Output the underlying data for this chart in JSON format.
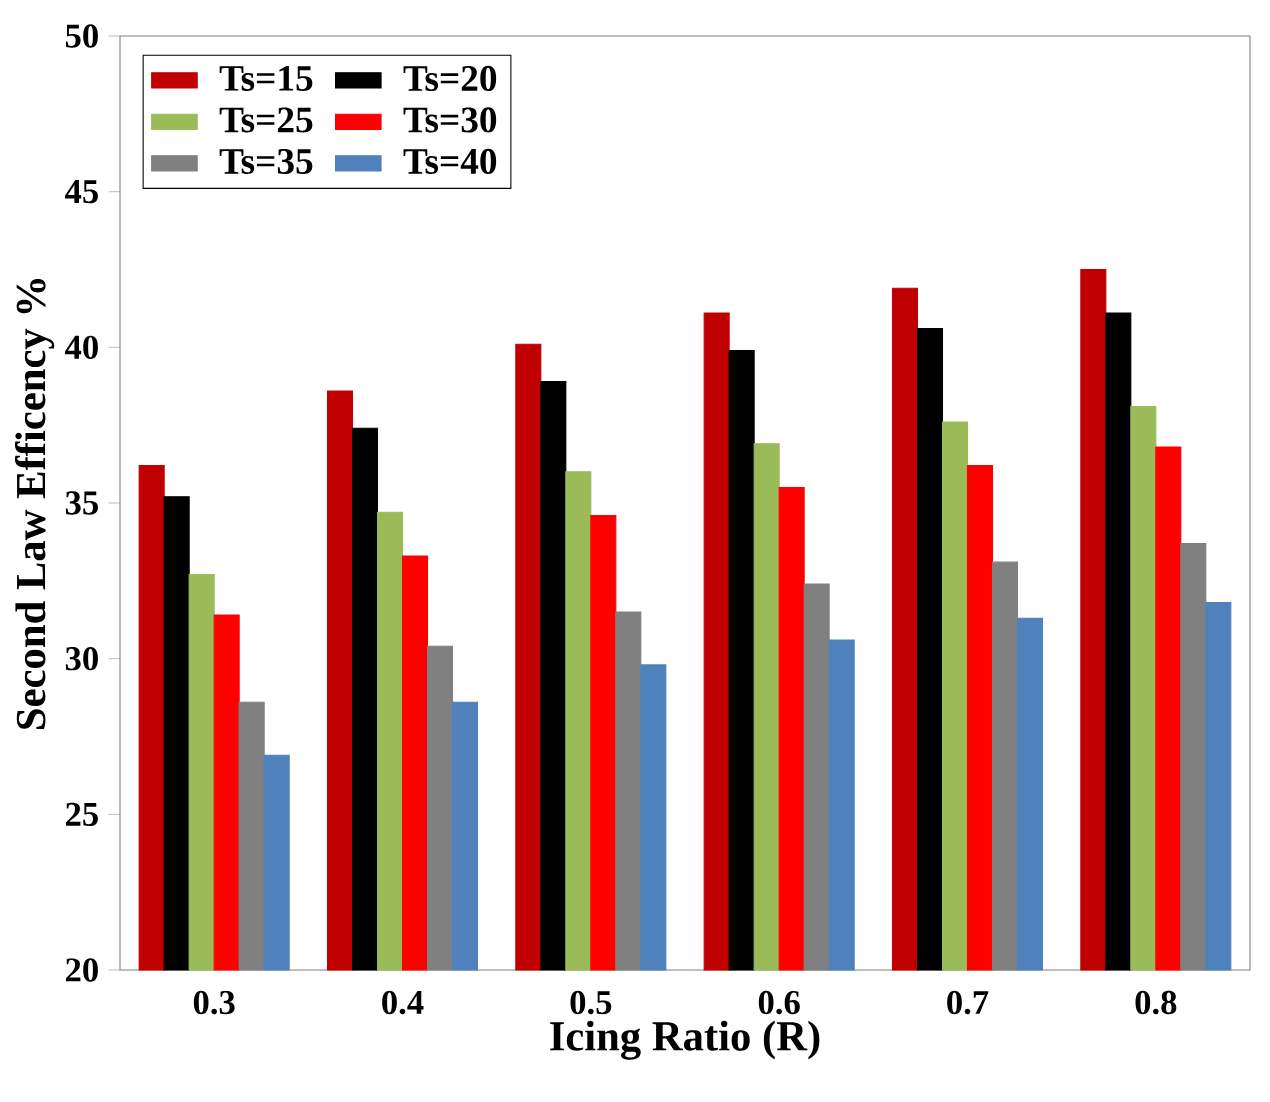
{
  "chart_data": {
    "type": "bar",
    "xlabel": "Icing Ratio (R)",
    "ylabel": "Second Law Efficency  %",
    "categories": [
      "0.3",
      "0.4",
      "0.5",
      "0.6",
      "0.7",
      "0.8"
    ],
    "series": [
      {
        "name": "Ts=15",
        "color": "#c00000",
        "values": [
          36.2,
          38.6,
          40.1,
          41.1,
          41.9,
          42.5
        ]
      },
      {
        "name": "Ts=20",
        "color": "#000000",
        "values": [
          35.2,
          37.4,
          38.9,
          39.9,
          40.6,
          41.1
        ]
      },
      {
        "name": "Ts=25",
        "color": "#9bbb59",
        "values": [
          32.7,
          34.7,
          36.0,
          36.9,
          37.6,
          38.1
        ]
      },
      {
        "name": "Ts=30",
        "color": "#ff0000",
        "values": [
          31.4,
          33.3,
          34.6,
          35.5,
          36.2,
          36.8
        ]
      },
      {
        "name": "Ts=35",
        "color": "#808080",
        "values": [
          28.6,
          30.4,
          31.5,
          32.4,
          33.1,
          33.7
        ]
      },
      {
        "name": "Ts=40",
        "color": "#4f81bd",
        "values": [
          26.9,
          28.6,
          29.8,
          30.6,
          31.3,
          31.8
        ]
      }
    ],
    "ylim": [
      20,
      50
    ],
    "yticks": [
      20,
      25,
      30,
      35,
      40,
      45,
      50
    ],
    "legend": "top left"
  }
}
